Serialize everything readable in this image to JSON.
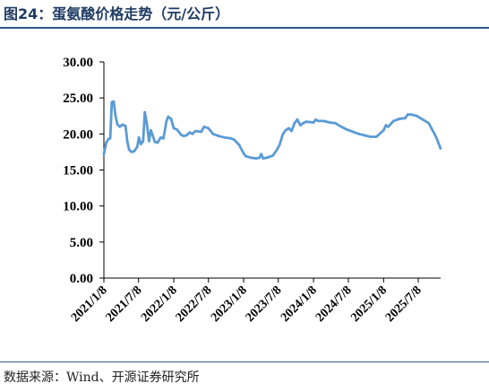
{
  "figure": {
    "title": "图24：蛋氨酸价格走势（元/公斤）",
    "source": "数据来源：Wind、开源证券研究所"
  },
  "style": {
    "line_color": "#5b9bd5",
    "axis_color": "#000000",
    "rule_color": "#2e5a8a",
    "title_color": "#1f3b63"
  },
  "chart_data": {
    "type": "line",
    "title": "",
    "xlabel": "",
    "ylabel": "",
    "ylim": [
      0,
      30
    ],
    "yticks": [
      "0.00",
      "5.00",
      "10.00",
      "15.00",
      "20.00",
      "25.00",
      "30.00"
    ],
    "xticks": [
      "2021/1/8",
      "2021/7/8",
      "2022/1/8",
      "2022/7/8",
      "2023/1/8",
      "2023/7/8",
      "2024/1/8",
      "2024/7/8",
      "2025/1/8",
      "2025/7/8"
    ],
    "grid": false,
    "legend": "none",
    "series": [
      {
        "values": [
          [
            "2021/1/8",
            17.2
          ],
          [
            "2021/1/20",
            18.8
          ],
          [
            "2021/2/1",
            19.3
          ],
          [
            "2021/2/10",
            19.4
          ],
          [
            "2021/2/18",
            24.4
          ],
          [
            "2021/2/28",
            24.5
          ],
          [
            "2021/3/10",
            22.5
          ],
          [
            "2021/3/20",
            21.3
          ],
          [
            "2021/4/1",
            21.0
          ],
          [
            "2021/4/15",
            21.3
          ],
          [
            "2021/5/1",
            21.1
          ],
          [
            "2021/5/10",
            19.0
          ],
          [
            "2021/5/20",
            17.8
          ],
          [
            "2021/6/1",
            17.5
          ],
          [
            "2021/6/15",
            17.6
          ],
          [
            "2021/7/1",
            18.2
          ],
          [
            "2021/7/10",
            19.5
          ],
          [
            "2021/7/20",
            18.6
          ],
          [
            "2021/8/1",
            19.0
          ],
          [
            "2021/8/10",
            23.0
          ],
          [
            "2021/8/20",
            21.5
          ],
          [
            "2021/9/1",
            19.0
          ],
          [
            "2021/9/10",
            20.5
          ],
          [
            "2021/9/20",
            19.8
          ],
          [
            "2021/10/1",
            18.9
          ],
          [
            "2021/10/15",
            18.8
          ],
          [
            "2021/11/1",
            19.5
          ],
          [
            "2021/11/15",
            19.4
          ],
          [
            "2021/12/1",
            21.8
          ],
          [
            "2021/12/10",
            22.4
          ],
          [
            "2021/12/25",
            22.1
          ],
          [
            "2022/1/8",
            20.8
          ],
          [
            "2022/1/25",
            20.6
          ],
          [
            "2022/2/15",
            19.9
          ],
          [
            "2022/3/1",
            19.7
          ],
          [
            "2022/3/15",
            19.8
          ],
          [
            "2022/4/1",
            20.2
          ],
          [
            "2022/4/15",
            20.0
          ],
          [
            "2022/5/1",
            20.4
          ],
          [
            "2022/6/1",
            20.3
          ],
          [
            "2022/6/15",
            21.0
          ],
          [
            "2022/7/8",
            20.8
          ],
          [
            "2022/8/1",
            20.0
          ],
          [
            "2022/9/1",
            19.7
          ],
          [
            "2022/10/1",
            19.5
          ],
          [
            "2022/11/1",
            19.4
          ],
          [
            "2022/11/20",
            19.2
          ],
          [
            "2022/12/15",
            18.5
          ],
          [
            "2023/1/8",
            17.3
          ],
          [
            "2023/1/20",
            16.9
          ],
          [
            "2023/2/15",
            16.7
          ],
          [
            "2023/3/15",
            16.6
          ],
          [
            "2023/4/1",
            16.7
          ],
          [
            "2023/4/10",
            17.2
          ],
          [
            "2023/4/20",
            16.6
          ],
          [
            "2023/5/10",
            16.7
          ],
          [
            "2023/6/10",
            17.0
          ],
          [
            "2023/7/1",
            17.8
          ],
          [
            "2023/7/15",
            18.5
          ],
          [
            "2023/8/1",
            20.0
          ],
          [
            "2023/8/15",
            20.5
          ],
          [
            "2023/9/1",
            20.8
          ],
          [
            "2023/9/15",
            20.4
          ],
          [
            "2023/10/1",
            21.5
          ],
          [
            "2023/10/15",
            22.0
          ],
          [
            "2023/11/1",
            21.2
          ],
          [
            "2023/11/15",
            21.5
          ],
          [
            "2023/12/1",
            21.7
          ],
          [
            "2024/1/8",
            21.6
          ],
          [
            "2024/1/20",
            22.0
          ],
          [
            "2024/2/1",
            21.8
          ],
          [
            "2024/3/1",
            21.8
          ],
          [
            "2024/4/1",
            21.6
          ],
          [
            "2024/5/1",
            21.5
          ],
          [
            "2024/6/1",
            21.0
          ],
          [
            "2024/7/1",
            20.6
          ],
          [
            "2024/8/1",
            20.3
          ],
          [
            "2024/9/1",
            20.0
          ],
          [
            "2024/10/1",
            19.8
          ],
          [
            "2024/11/1",
            19.6
          ],
          [
            "2024/12/1",
            19.6
          ],
          [
            "2025/1/8",
            20.5
          ],
          [
            "2025/1/20",
            21.2
          ],
          [
            "2025/2/1",
            21.0
          ],
          [
            "2025/2/15",
            21.4
          ],
          [
            "2025/3/1",
            21.8
          ],
          [
            "2025/4/1",
            22.1
          ],
          [
            "2025/5/1",
            22.2
          ],
          [
            "2025/5/15",
            22.7
          ],
          [
            "2025/6/1",
            22.7
          ],
          [
            "2025/7/1",
            22.5
          ],
          [
            "2025/8/1",
            22.0
          ],
          [
            "2025/9/1",
            21.5
          ],
          [
            "2025/9/15",
            20.8
          ],
          [
            "2025/10/1",
            20.0
          ],
          [
            "2025/10/15",
            19.2
          ],
          [
            "2025/11/1",
            18.0
          ]
        ]
      }
    ]
  }
}
